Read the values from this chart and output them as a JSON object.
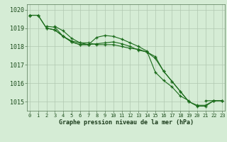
{
  "x": [
    0,
    1,
    2,
    3,
    4,
    5,
    6,
    7,
    8,
    9,
    10,
    11,
    12,
    13,
    14,
    15,
    16,
    17,
    18,
    19,
    20,
    21,
    22,
    23
  ],
  "line1": [
    1019.7,
    1019.7,
    null,
    1019.1,
    1018.85,
    1018.45,
    1018.2,
    1018.1,
    1018.5,
    1018.6,
    1018.55,
    1018.4,
    1018.2,
    1018.0,
    1017.75,
    1016.6,
    1016.15,
    1015.8,
    1015.3,
    1015.05,
    null,
    1015.05,
    1015.05,
    1015.05
  ],
  "line2": [
    1019.7,
    null,
    1019.1,
    1019.05,
    1018.55,
    1018.25,
    1018.1,
    1018.1,
    null,
    null,
    null,
    null,
    null,
    null,
    null,
    null,
    null,
    null,
    null,
    null,
    null,
    null,
    null,
    null
  ],
  "line3": [
    1019.7,
    1019.7,
    1019.0,
    1018.9,
    1018.55,
    1018.25,
    1018.1,
    1018.1,
    1018.15,
    1018.2,
    1018.25,
    1018.15,
    1018.0,
    1017.8,
    1017.7,
    1017.45,
    1016.65,
    1016.1,
    1015.55,
    1015.0,
    1014.8,
    1014.8,
    1015.05,
    1015.05
  ],
  "line4": [
    1019.7,
    1019.7,
    1019.0,
    1018.9,
    1018.55,
    1018.3,
    1018.2,
    1018.2,
    1018.1,
    1018.1,
    1018.1,
    1018.0,
    1017.9,
    1017.85,
    1017.7,
    1017.35,
    1016.65,
    1016.1,
    1015.55,
    1015.0,
    1014.75,
    1014.75,
    1015.05,
    1015.05
  ],
  "bg_color": "#d5ecd5",
  "grid_color_major": "#b0c8b0",
  "grid_color_minor": "#c8dcc8",
  "line_color": "#1a6b1a",
  "xlabel": "Graphe pression niveau de la mer (hPa)",
  "ylim_min": 1014.5,
  "ylim_max": 1020.3,
  "yticks": [
    1015,
    1016,
    1017,
    1018,
    1019,
    1020
  ],
  "xticks": [
    0,
    1,
    2,
    3,
    4,
    5,
    6,
    7,
    8,
    9,
    10,
    11,
    12,
    13,
    14,
    15,
    16,
    17,
    18,
    19,
    20,
    21,
    22,
    23
  ],
  "figwidth": 3.2,
  "figheight": 2.0,
  "dpi": 100
}
